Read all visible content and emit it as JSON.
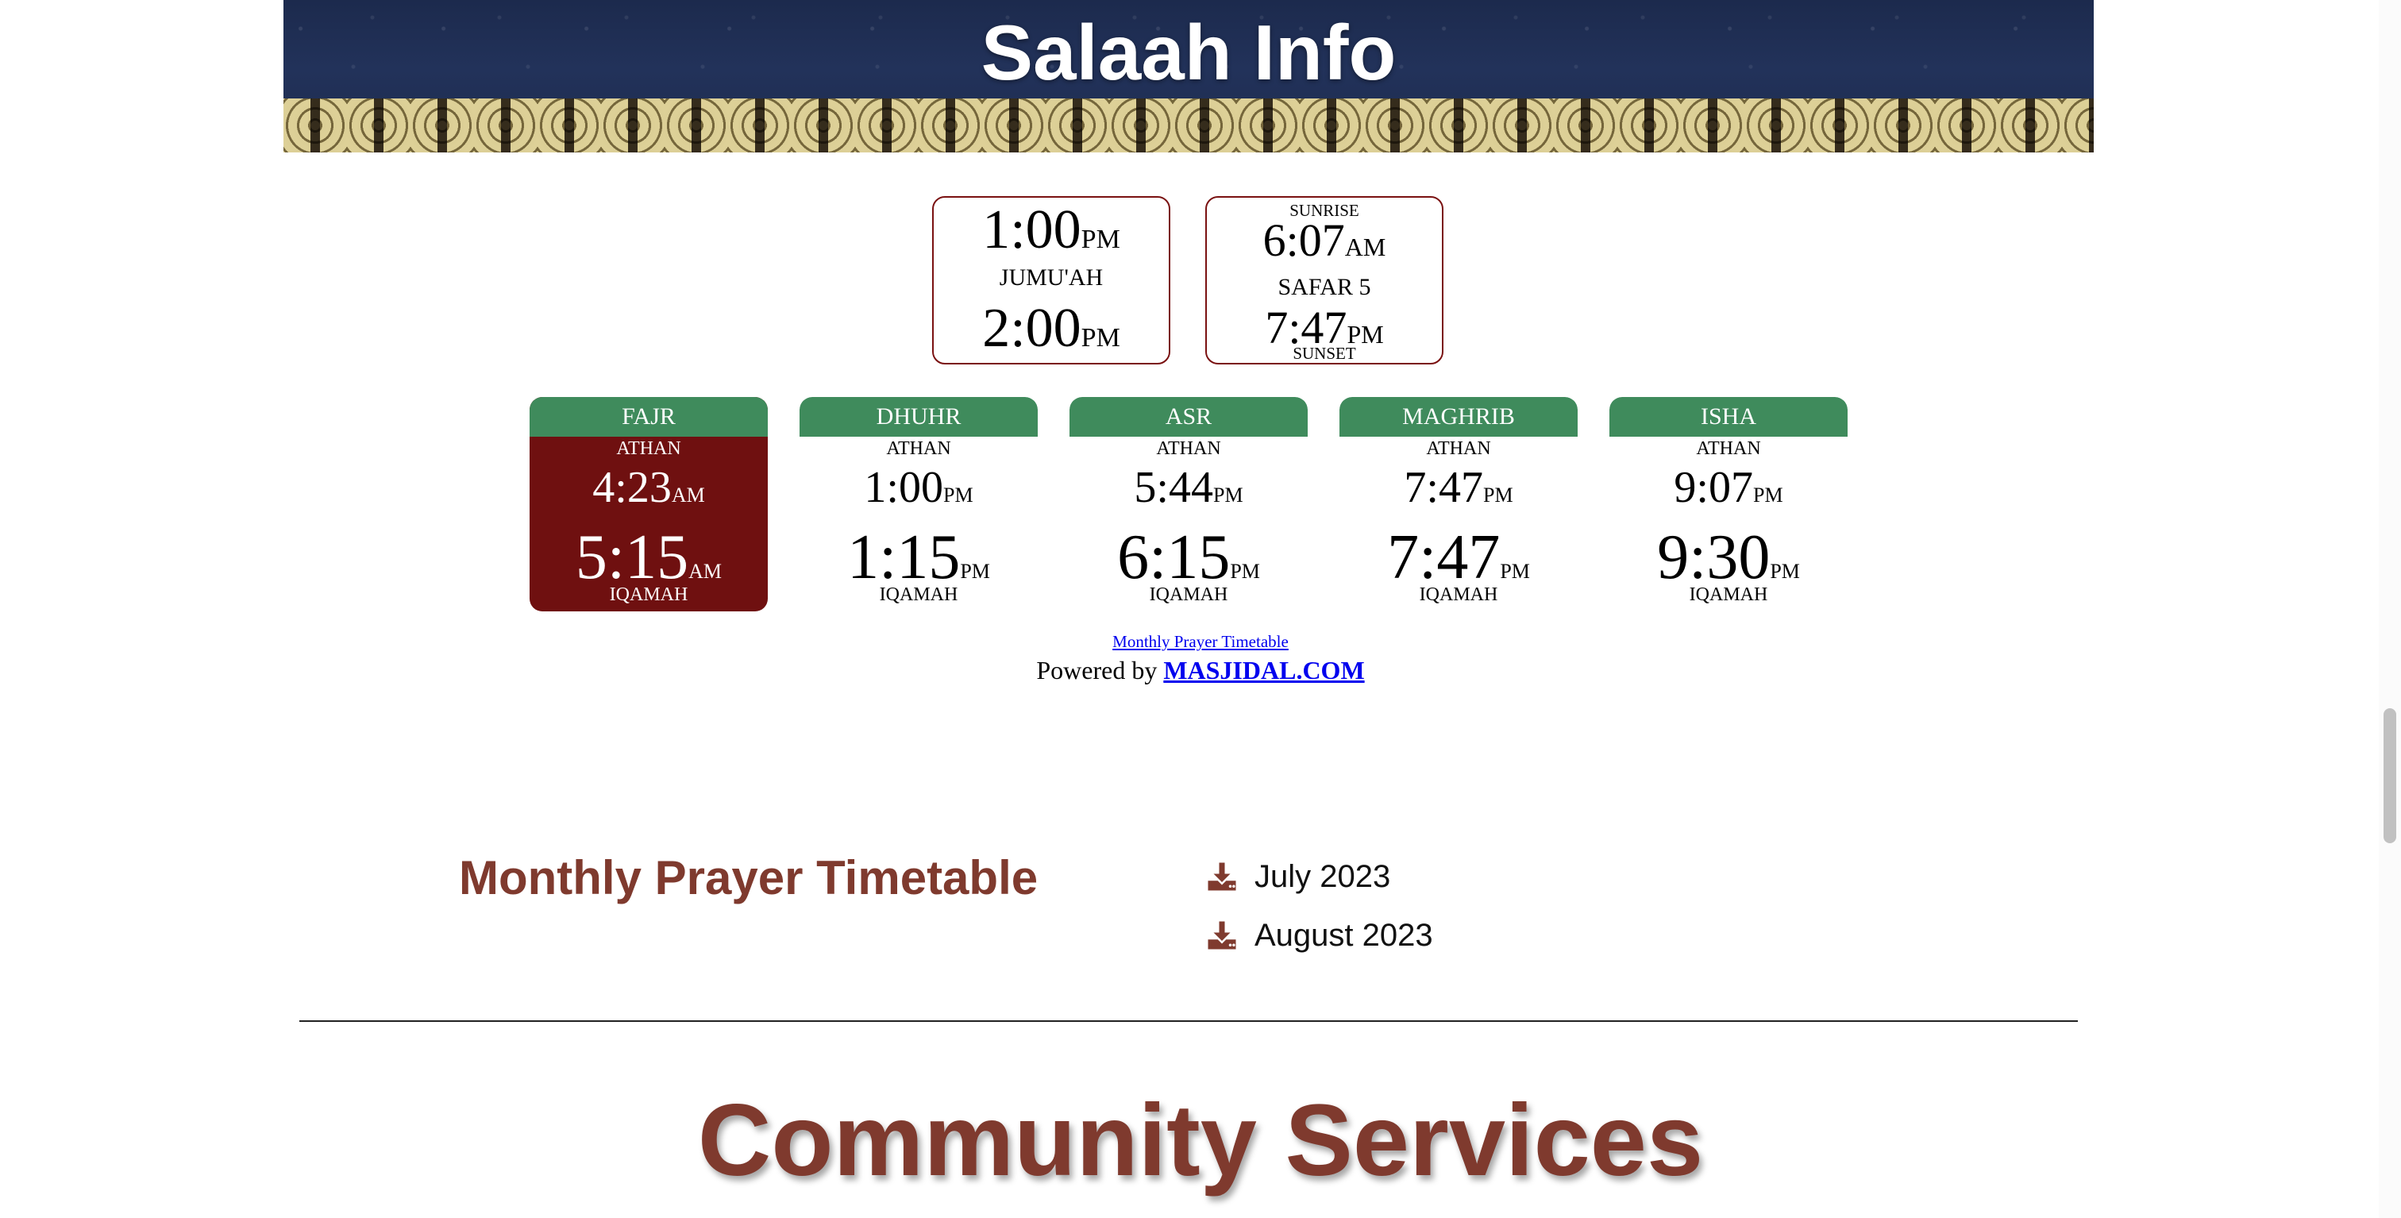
{
  "hero": {
    "title": "Salaah Info"
  },
  "top_boxes": {
    "jumuah": {
      "time1": "1:00",
      "ampm1": "PM",
      "label": "JUMU'AH",
      "time2": "2:00",
      "ampm2": "PM"
    },
    "sun": {
      "sunrise_label": "SUNRISE",
      "sunrise_time": "6:07",
      "sunrise_ampm": "AM",
      "hijri_date": "SAFAR 5",
      "sunset_time": "7:47",
      "sunset_ampm": "PM",
      "sunset_label": "SUNSET"
    }
  },
  "prayers": [
    {
      "name": "FAJR",
      "athan_label": "ATHAN",
      "athan": "4:23",
      "athan_ampm": "AM",
      "iqamah": "5:15",
      "iqamah_ampm": "AM",
      "iqamah_label": "IQAMAH"
    },
    {
      "name": "DHUHR",
      "athan_label": "ATHAN",
      "athan": "1:00",
      "athan_ampm": "PM",
      "iqamah": "1:15",
      "iqamah_ampm": "PM",
      "iqamah_label": "IQAMAH"
    },
    {
      "name": "ASR",
      "athan_label": "ATHAN",
      "athan": "5:44",
      "athan_ampm": "PM",
      "iqamah": "6:15",
      "iqamah_ampm": "PM",
      "iqamah_label": "IQAMAH"
    },
    {
      "name": "MAGHRIB",
      "athan_label": "ATHAN",
      "athan": "7:47",
      "athan_ampm": "PM",
      "iqamah": "7:47",
      "iqamah_ampm": "PM",
      "iqamah_label": "IQAMAH"
    },
    {
      "name": "ISHA",
      "athan_label": "ATHAN",
      "athan": "9:07",
      "athan_ampm": "PM",
      "iqamah": "9:30",
      "iqamah_ampm": "PM",
      "iqamah_label": "IQAMAH"
    }
  ],
  "links": {
    "monthly_timetable": "Monthly Prayer Timetable",
    "powered_prefix": "Powered by ",
    "powered_link": "MASJIDAL.COM"
  },
  "monthly": {
    "heading": "Monthly Prayer Timetable",
    "downloads": [
      {
        "label": "July 2023",
        "icon": "download-icon"
      },
      {
        "label": "August 2023",
        "icon": "download-icon"
      }
    ]
  },
  "community": {
    "heading": "Community Services"
  },
  "colors": {
    "accent_brown": "#7f3a2e",
    "active_red": "#6f1010",
    "header_green": "#3f8b5c",
    "border_red": "#7a1111"
  }
}
